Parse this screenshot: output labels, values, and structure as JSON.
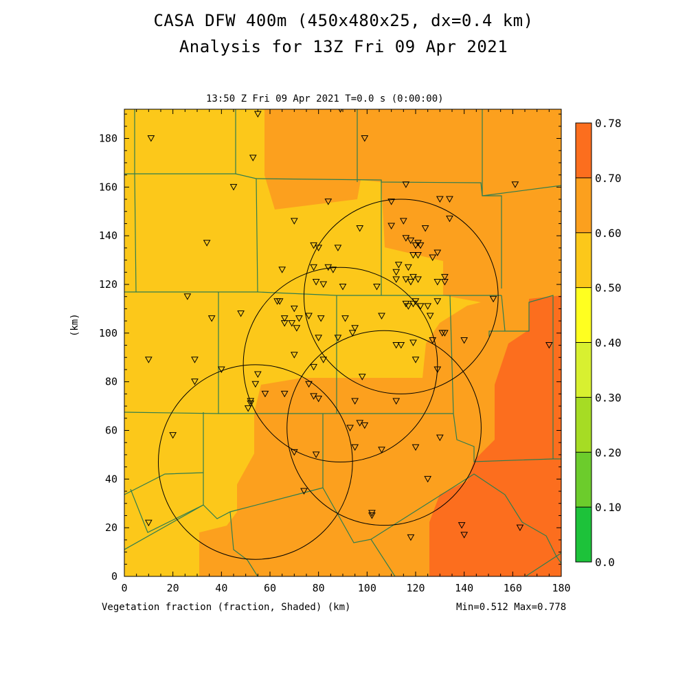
{
  "header": {
    "title_line1": "CASA DFW 400m (450x480x25, dx=0.4 km)",
    "title_line2": "Analysis for 13Z Fri 09 Apr 2021",
    "subtitle": "13:50 Z Fri 09 Apr 2021    T=0.0 s (0:00:00)"
  },
  "footer": {
    "field_label": "Vegetation fraction (fraction, Shaded)  (km)",
    "minmax": "Min=0.512 Max=0.778"
  },
  "axes": {
    "xlabel": "",
    "ylabel": "(km)",
    "xticks": [
      "0",
      "20",
      "40",
      "60",
      "80",
      "100",
      "120",
      "140",
      "160",
      "180"
    ],
    "yticks": [
      "0",
      "20",
      "40",
      "60",
      "80",
      "100",
      "120",
      "140",
      "160",
      "180"
    ],
    "xlim": [
      0,
      180
    ],
    "ylim": [
      0,
      192
    ]
  },
  "colorbar": {
    "labels": [
      "0.0",
      "0.10",
      "0.20",
      "0.30",
      "0.40",
      "0.50",
      "0.60",
      "0.70",
      "0.78"
    ],
    "colors": [
      "#1de38c",
      "#1dc23a",
      "#6ccc2c",
      "#a6dc24",
      "#d8f030",
      "#ffff20",
      "#fcc81a",
      "#fca01e",
      "#fc6e1e"
    ]
  },
  "map": {
    "regions": [
      {
        "value_class": "0.50-0.60",
        "color": "#fcc81a"
      },
      {
        "value_class": "0.60-0.70",
        "color": "#fca01e"
      },
      {
        "value_class": "0.70-0.78",
        "color": "#fc6e1e"
      }
    ],
    "boundary_color": "#2e7d4f",
    "radar_rings": [
      {
        "cx_km": 114,
        "cy_km": 115,
        "r_km": 40
      },
      {
        "cx_km": 89,
        "cy_km": 87,
        "r_km": 40
      },
      {
        "cx_km": 107,
        "cy_km": 61,
        "r_km": 40
      },
      {
        "cx_km": 54,
        "cy_km": 47,
        "r_km": 40
      }
    ],
    "stations_km": [
      [
        11,
        180
      ],
      [
        55,
        190
      ],
      [
        99,
        180
      ],
      [
        89,
        192
      ],
      [
        53,
        172
      ],
      [
        34,
        137
      ],
      [
        45,
        160
      ],
      [
        70,
        146
      ],
      [
        84,
        154
      ],
      [
        78,
        136
      ],
      [
        80,
        135
      ],
      [
        88,
        135
      ],
      [
        97,
        143
      ],
      [
        110,
        154
      ],
      [
        116,
        161
      ],
      [
        130,
        155
      ],
      [
        134,
        155
      ],
      [
        134,
        147
      ],
      [
        124,
        143
      ],
      [
        110,
        144
      ],
      [
        115,
        146
      ],
      [
        116,
        139
      ],
      [
        118,
        138
      ],
      [
        121,
        137
      ],
      [
        120,
        136
      ],
      [
        122,
        136
      ],
      [
        121,
        132
      ],
      [
        119,
        132
      ],
      [
        127,
        131
      ],
      [
        129,
        133
      ],
      [
        113,
        128
      ],
      [
        117,
        127
      ],
      [
        112,
        125
      ],
      [
        78,
        127
      ],
      [
        84,
        127
      ],
      [
        86,
        126
      ],
      [
        65,
        126
      ],
      [
        79,
        121
      ],
      [
        82,
        120
      ],
      [
        90,
        119
      ],
      [
        104,
        119
      ],
      [
        112,
        122
      ],
      [
        116,
        122
      ],
      [
        118,
        121
      ],
      [
        119,
        123
      ],
      [
        121,
        122
      ],
      [
        129,
        121
      ],
      [
        132,
        121
      ],
      [
        132,
        123
      ],
      [
        120,
        113
      ],
      [
        119,
        112
      ],
      [
        116,
        112
      ],
      [
        117,
        111
      ],
      [
        122,
        111
      ],
      [
        125,
        111
      ],
      [
        126,
        107
      ],
      [
        129,
        113
      ],
      [
        64,
        113
      ],
      [
        63,
        113
      ],
      [
        70,
        110
      ],
      [
        72,
        106
      ],
      [
        69,
        104
      ],
      [
        66,
        104
      ],
      [
        66,
        106
      ],
      [
        71,
        102
      ],
      [
        76,
        107
      ],
      [
        81,
        106
      ],
      [
        91,
        106
      ],
      [
        95,
        102
      ],
      [
        94,
        100
      ],
      [
        88,
        98
      ],
      [
        80,
        98
      ],
      [
        106,
        107
      ],
      [
        112,
        95
      ],
      [
        114,
        95
      ],
      [
        119,
        96
      ],
      [
        127,
        97
      ],
      [
        131,
        100
      ],
      [
        132,
        100
      ],
      [
        140,
        97
      ],
      [
        152,
        114
      ],
      [
        161,
        161
      ],
      [
        175,
        95
      ],
      [
        26,
        115
      ],
      [
        36,
        106
      ],
      [
        48,
        108
      ],
      [
        10,
        89
      ],
      [
        29,
        89
      ],
      [
        40,
        85
      ],
      [
        29,
        80
      ],
      [
        70,
        91
      ],
      [
        78,
        86
      ],
      [
        82,
        89
      ],
      [
        98,
        82
      ],
      [
        120,
        89
      ],
      [
        129,
        85
      ],
      [
        55,
        83
      ],
      [
        54,
        79
      ],
      [
        58,
        75
      ],
      [
        66,
        75
      ],
      [
        76,
        79
      ],
      [
        80,
        73
      ],
      [
        78,
        74
      ],
      [
        52,
        72
      ],
      [
        52,
        71
      ],
      [
        51,
        69
      ],
      [
        95,
        72
      ],
      [
        112,
        72
      ],
      [
        93,
        61
      ],
      [
        97,
        63
      ],
      [
        99,
        62
      ],
      [
        130,
        57
      ],
      [
        20,
        58
      ],
      [
        70,
        51
      ],
      [
        79,
        50
      ],
      [
        95,
        53
      ],
      [
        106,
        52
      ],
      [
        120,
        53
      ],
      [
        125,
        40
      ],
      [
        74,
        35
      ],
      [
        102,
        26
      ],
      [
        102,
        25
      ],
      [
        10,
        22
      ],
      [
        118,
        16
      ],
      [
        139,
        21
      ],
      [
        140,
        17
      ],
      [
        163,
        20
      ]
    ]
  }
}
